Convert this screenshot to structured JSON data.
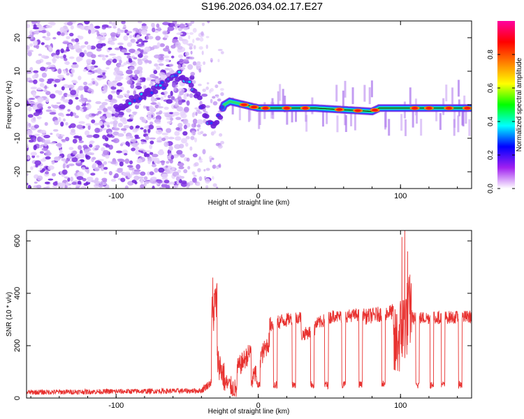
{
  "title": "S196.2026.034.02.17.E27",
  "chart_data": [
    {
      "type": "heatmap",
      "name": "spectrogram",
      "xlabel": "Height of straight line (km)",
      "ylabel": "Frequency (Hz)",
      "xlim": [
        -163,
        150
      ],
      "ylim": [
        -25,
        25
      ],
      "xticks": [
        -100,
        0,
        100
      ],
      "yticks": [
        -20,
        -10,
        0,
        10,
        20
      ],
      "colorbar": {
        "label": "Normalized spectral amplitude",
        "ticks": [
          0.0,
          0.2,
          0.4,
          0.6,
          0.8
        ],
        "range": [
          0,
          1
        ],
        "colors": [
          "#ffffff",
          "#a020f0",
          "#0000ff",
          "#00ffff",
          "#00ff00",
          "#ffff00",
          "#ff8000",
          "#ff0000",
          "#ff00a0"
        ]
      },
      "ridge": {
        "x": [
          -100,
          -85,
          -70,
          -55,
          -48,
          -42,
          -37,
          -32,
          -28,
          -24,
          -20,
          -15,
          -10,
          0,
          20,
          40,
          60,
          80,
          85,
          90,
          100,
          120,
          148
        ],
        "y": [
          -1,
          2,
          5,
          9,
          6,
          2,
          -3,
          -7,
          -4,
          0,
          1,
          0.5,
          0,
          -1,
          -1,
          -1,
          -1.5,
          -2,
          -1,
          -1,
          -1,
          -1,
          -1
        ]
      },
      "hot_spots_x": [
        -10,
        -3,
        5,
        20,
        33,
        57,
        70,
        82,
        110,
        120,
        134,
        147
      ]
    },
    {
      "type": "line",
      "name": "snr",
      "xlabel": "Height of straight line (km)",
      "ylabel": "SNR (10 * v/v)",
      "xlim": [
        -163,
        150
      ],
      "ylim": [
        0,
        640
      ],
      "xticks": [
        -100,
        0,
        100
      ],
      "yticks": [
        0,
        200,
        400,
        600
      ],
      "color": "#e8312f",
      "segments": [
        {
          "x": [
            -163,
            -40
          ],
          "base": [
            22,
            28
          ],
          "noise": 10
        },
        {
          "x": [
            -40,
            -33
          ],
          "base": [
            30,
            60
          ],
          "noise": 15
        },
        {
          "x": [
            -33,
            -29
          ],
          "base": [
            300,
            380
          ],
          "noise": 90
        },
        {
          "x": [
            -29,
            -24
          ],
          "base": [
            150,
            80
          ],
          "noise": 60
        },
        {
          "x": [
            -24,
            -15
          ],
          "base": [
            60,
            30
          ],
          "noise": 40
        },
        {
          "x": [
            -15,
            -5
          ],
          "base": [
            110,
            180
          ],
          "noise": 40
        },
        {
          "x": [
            -5,
            0
          ],
          "base": [
            60,
            120
          ],
          "noise": 40
        },
        {
          "x": [
            0,
            8
          ],
          "base": [
            140,
            220
          ],
          "noise": 40
        },
        {
          "x": [
            8,
            20
          ],
          "base": [
            280,
            300
          ],
          "noise": 30
        },
        {
          "x": [
            20,
            30
          ],
          "base": [
            300,
            310
          ],
          "noise": 25
        },
        {
          "x": [
            30,
            40
          ],
          "base": [
            240,
            260
          ],
          "noise": 25
        },
        {
          "x": [
            40,
            55
          ],
          "base": [
            280,
            320
          ],
          "noise": 25
        },
        {
          "x": [
            55,
            75
          ],
          "base": [
            310,
            320
          ],
          "noise": 25
        },
        {
          "x": [
            75,
            95
          ],
          "base": [
            310,
            330
          ],
          "noise": 30
        },
        {
          "x": [
            95,
            108
          ],
          "base": [
            180,
            350
          ],
          "noise": 150
        },
        {
          "x": [
            108,
            150
          ],
          "base": [
            305,
            310
          ],
          "noise": 25
        }
      ],
      "dips_x": [
        0,
        12,
        25,
        38,
        48,
        60,
        72,
        88,
        112,
        122,
        130,
        142
      ],
      "dip_level": 50,
      "spike_points": [
        [
          -32,
          460
        ],
        [
          -31,
          400
        ],
        [
          101,
          615
        ],
        [
          103,
          640
        ],
        [
          105,
          560
        ]
      ]
    }
  ]
}
